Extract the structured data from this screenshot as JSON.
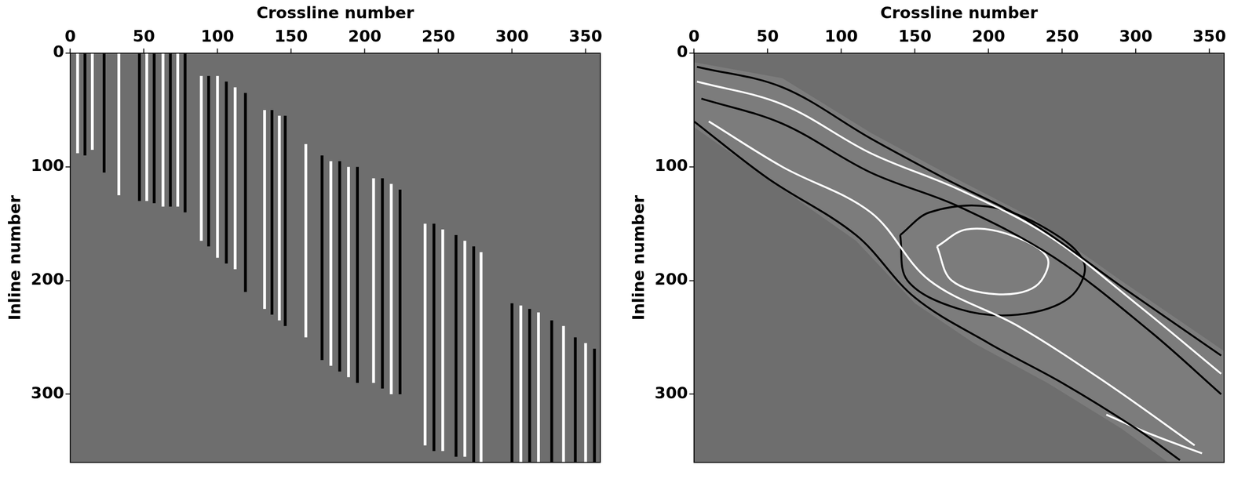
{
  "chart_data": [
    {
      "type": "segments",
      "x_label": "Crossline number",
      "y_label": "Inline number",
      "xlim": [
        0,
        360
      ],
      "ylim": [
        0,
        360
      ],
      "xticks": [
        0,
        50,
        100,
        150,
        200,
        250,
        300,
        350
      ],
      "yticks": [
        0,
        100,
        200,
        300
      ],
      "grid": false,
      "segments": [
        {
          "x": 5,
          "y": [
            0,
            88
          ],
          "color": "#ffffff"
        },
        {
          "x": 10,
          "y": [
            0,
            90
          ],
          "color": "#000000"
        },
        {
          "x": 15,
          "y": [
            0,
            85
          ],
          "color": "#ffffff"
        },
        {
          "x": 23,
          "y": [
            0,
            105
          ],
          "color": "#000000"
        },
        {
          "x": 33,
          "y": [
            0,
            125
          ],
          "color": "#ffffff"
        },
        {
          "x": 47,
          "y": [
            0,
            130
          ],
          "color": "#000000"
        },
        {
          "x": 52,
          "y": [
            0,
            130
          ],
          "color": "#ffffff"
        },
        {
          "x": 57,
          "y": [
            0,
            132
          ],
          "color": "#000000"
        },
        {
          "x": 63,
          "y": [
            0,
            135
          ],
          "color": "#ffffff"
        },
        {
          "x": 68,
          "y": [
            0,
            135
          ],
          "color": "#000000"
        },
        {
          "x": 73,
          "y": [
            0,
            135
          ],
          "color": "#ffffff"
        },
        {
          "x": 78,
          "y": [
            0,
            140
          ],
          "color": "#000000"
        },
        {
          "x": 89,
          "y": [
            20,
            165
          ],
          "color": "#ffffff"
        },
        {
          "x": 94,
          "y": [
            20,
            170
          ],
          "color": "#000000"
        },
        {
          "x": 100,
          "y": [
            20,
            180
          ],
          "color": "#ffffff"
        },
        {
          "x": 106,
          "y": [
            25,
            185
          ],
          "color": "#000000"
        },
        {
          "x": 112,
          "y": [
            30,
            190
          ],
          "color": "#ffffff"
        },
        {
          "x": 119,
          "y": [
            35,
            210
          ],
          "color": "#000000"
        },
        {
          "x": 132,
          "y": [
            50,
            225
          ],
          "color": "#ffffff"
        },
        {
          "x": 137,
          "y": [
            50,
            230
          ],
          "color": "#000000"
        },
        {
          "x": 142,
          "y": [
            55,
            235
          ],
          "color": "#ffffff"
        },
        {
          "x": 146,
          "y": [
            55,
            240
          ],
          "color": "#000000"
        },
        {
          "x": 160,
          "y": [
            80,
            250
          ],
          "color": "#ffffff"
        },
        {
          "x": 171,
          "y": [
            90,
            270
          ],
          "color": "#000000"
        },
        {
          "x": 177,
          "y": [
            95,
            275
          ],
          "color": "#ffffff"
        },
        {
          "x": 183,
          "y": [
            95,
            280
          ],
          "color": "#000000"
        },
        {
          "x": 189,
          "y": [
            100,
            285
          ],
          "color": "#ffffff"
        },
        {
          "x": 195,
          "y": [
            100,
            290
          ],
          "color": "#000000"
        },
        {
          "x": 206,
          "y": [
            110,
            290
          ],
          "color": "#ffffff"
        },
        {
          "x": 212,
          "y": [
            110,
            295
          ],
          "color": "#000000"
        },
        {
          "x": 218,
          "y": [
            115,
            300
          ],
          "color": "#ffffff"
        },
        {
          "x": 224,
          "y": [
            120,
            300
          ],
          "color": "#000000"
        },
        {
          "x": 241,
          "y": [
            150,
            345
          ],
          "color": "#ffffff"
        },
        {
          "x": 247,
          "y": [
            150,
            350
          ],
          "color": "#000000"
        },
        {
          "x": 253,
          "y": [
            155,
            350
          ],
          "color": "#ffffff"
        },
        {
          "x": 262,
          "y": [
            160,
            355
          ],
          "color": "#000000"
        },
        {
          "x": 268,
          "y": [
            165,
            355
          ],
          "color": "#ffffff"
        },
        {
          "x": 274,
          "y": [
            170,
            360
          ],
          "color": "#000000"
        },
        {
          "x": 279,
          "y": [
            175,
            360
          ],
          "color": "#ffffff"
        },
        {
          "x": 300,
          "y": [
            220,
            360
          ],
          "color": "#000000"
        },
        {
          "x": 306,
          "y": [
            222,
            360
          ],
          "color": "#ffffff"
        },
        {
          "x": 312,
          "y": [
            225,
            360
          ],
          "color": "#000000"
        },
        {
          "x": 318,
          "y": [
            228,
            360
          ],
          "color": "#ffffff"
        },
        {
          "x": 327,
          "y": [
            235,
            360
          ],
          "color": "#000000"
        },
        {
          "x": 335,
          "y": [
            240,
            360
          ],
          "color": "#ffffff"
        },
        {
          "x": 343,
          "y": [
            250,
            360
          ],
          "color": "#000000"
        },
        {
          "x": 350,
          "y": [
            255,
            360
          ],
          "color": "#ffffff"
        },
        {
          "x": 356,
          "y": [
            260,
            360
          ],
          "color": "#000000"
        }
      ]
    },
    {
      "type": "region",
      "x_label": "Crossline number",
      "y_label": "Inline number",
      "xlim": [
        0,
        360
      ],
      "ylim": [
        0,
        360
      ],
      "xticks": [
        0,
        50,
        100,
        150,
        200,
        250,
        300,
        350
      ],
      "yticks": [
        0,
        100,
        200,
        300
      ],
      "grid": false,
      "region": {
        "color": "#7c7c7c",
        "points": [
          [
            0,
            8
          ],
          [
            60,
            22
          ],
          [
            120,
            70
          ],
          [
            170,
            105
          ],
          [
            230,
            145
          ],
          [
            290,
            200
          ],
          [
            360,
            262
          ],
          [
            360,
            360
          ],
          [
            322,
            360
          ],
          [
            290,
            330
          ],
          [
            240,
            290
          ],
          [
            190,
            255
          ],
          [
            150,
            220
          ],
          [
            110,
            165
          ],
          [
            55,
            115
          ],
          [
            0,
            65
          ]
        ]
      },
      "lines": [
        {
          "color": "#000000",
          "points": [
            [
              2,
              12
            ],
            [
              60,
              30
            ],
            [
              120,
              75
            ],
            [
              170,
              110
            ],
            [
              230,
              150
            ],
            [
              290,
              205
            ],
            [
              358,
              266
            ]
          ]
        },
        {
          "color": "#ffffff",
          "points": [
            [
              2,
              25
            ],
            [
              60,
              45
            ],
            [
              120,
              88
            ],
            [
              180,
              120
            ],
            [
              240,
              160
            ],
            [
              300,
              220
            ],
            [
              358,
              282
            ]
          ]
        },
        {
          "color": "#000000",
          "points": [
            [
              5,
              40
            ],
            [
              60,
              62
            ],
            [
              120,
              105
            ],
            [
              180,
              135
            ],
            [
              245,
              180
            ],
            [
              310,
              245
            ],
            [
              358,
              300
            ]
          ]
        },
        {
          "color": "#000000",
          "points": [
            [
              0,
              60
            ],
            [
              50,
              110
            ],
            [
              110,
              160
            ],
            [
              150,
              215
            ],
            [
              200,
              255
            ],
            [
              250,
              290
            ],
            [
              300,
              330
            ],
            [
              330,
              358
            ]
          ]
        },
        {
          "color": "#ffffff",
          "points": [
            [
              10,
              60
            ],
            [
              60,
              100
            ],
            [
              120,
              140
            ],
            [
              160,
              200
            ],
            [
              220,
              240
            ],
            [
              280,
              290
            ],
            [
              340,
              345
            ]
          ]
        },
        {
          "color": "#000000",
          "points": [
            [
              140,
              160
            ],
            [
              160,
              140
            ],
            [
              200,
              135
            ],
            [
              240,
              155
            ],
            [
              265,
              185
            ],
            [
              255,
              215
            ],
            [
              220,
              230
            ],
            [
              180,
              225
            ],
            [
              145,
              200
            ],
            [
              140,
              160
            ]
          ]
        },
        {
          "color": "#ffffff",
          "points": [
            [
              165,
              170
            ],
            [
              185,
              155
            ],
            [
              215,
              160
            ],
            [
              240,
              180
            ],
            [
              232,
              205
            ],
            [
              205,
              212
            ],
            [
              175,
              200
            ],
            [
              165,
              170
            ]
          ]
        },
        {
          "color": "#ffffff",
          "points": [
            [
              280,
              318
            ],
            [
              310,
              335
            ],
            [
              345,
              352
            ]
          ]
        }
      ]
    }
  ]
}
